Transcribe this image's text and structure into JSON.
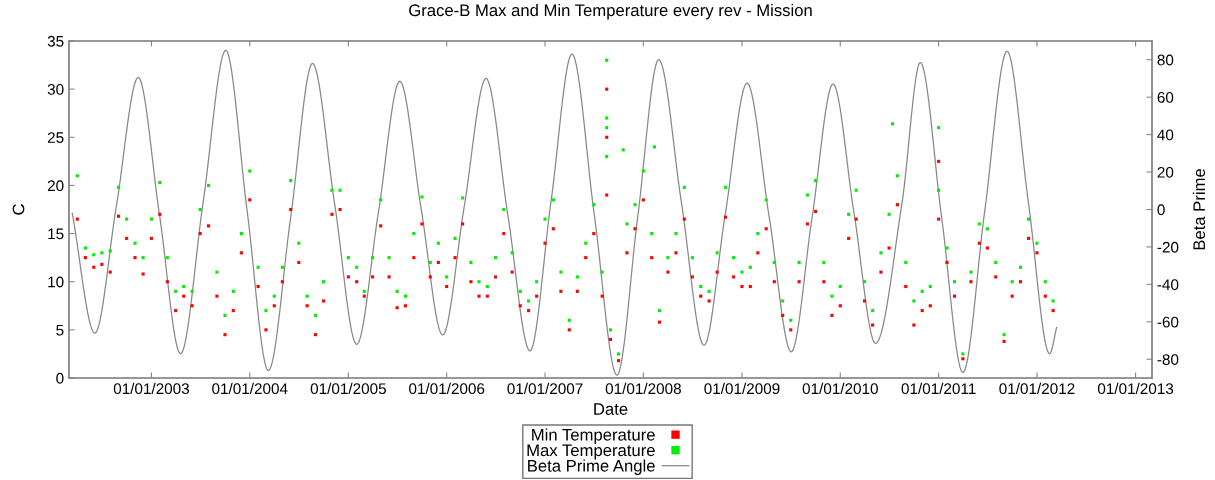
{
  "chart_data": {
    "type": "scatter",
    "title": "Grace-B Max and Min Temperature every rev - Mission",
    "xlabel": "Date",
    "ylabel": "C",
    "y2label": "Beta Prime",
    "xlim": [
      "2002-03-01",
      "2013-03-03"
    ],
    "xticks": [
      {
        "value": "2003-01-01",
        "label": "01/01/2003"
      },
      {
        "value": "2004-01-01",
        "label": "01/01/2004"
      },
      {
        "value": "2005-01-01",
        "label": "01/01/2005"
      },
      {
        "value": "2006-01-01",
        "label": "01/01/2006"
      },
      {
        "value": "2007-01-01",
        "label": "01/01/2007"
      },
      {
        "value": "2008-01-01",
        "label": "01/01/2008"
      },
      {
        "value": "2009-01-01",
        "label": "01/01/2009"
      },
      {
        "value": "2010-01-01",
        "label": "01/01/2010"
      },
      {
        "value": "2011-01-01",
        "label": "01/01/2011"
      },
      {
        "value": "2012-01-01",
        "label": "01/01/2012"
      },
      {
        "value": "2013-01-01",
        "label": "01/01/2013"
      }
    ],
    "ylim": [
      0,
      35
    ],
    "yticks": [
      0,
      5,
      10,
      15,
      20,
      25,
      30,
      35
    ],
    "y2lim": [
      -90,
      90
    ],
    "y2ticks": [
      -80,
      -60,
      -40,
      -20,
      0,
      20,
      40,
      60,
      80
    ],
    "grid": false,
    "legend": "bottom",
    "series": [
      {
        "name": "Min Temperature",
        "marker": "square",
        "color": "#ff0000",
        "x": [
          "2002-04",
          "2002-05",
          "2002-06",
          "2002-07",
          "2002-08",
          "2002-09",
          "2002-10",
          "2002-11",
          "2002-12",
          "2003-01",
          "2003-02",
          "2003-03",
          "2003-04",
          "2003-05",
          "2003-06",
          "2003-07",
          "2003-08",
          "2003-09",
          "2003-10",
          "2003-11",
          "2003-12",
          "2004-01",
          "2004-02",
          "2004-03",
          "2004-04",
          "2004-05",
          "2004-06",
          "2004-07",
          "2004-08",
          "2004-09",
          "2004-10",
          "2004-11",
          "2004-12",
          "2005-01",
          "2005-02",
          "2005-03",
          "2005-04",
          "2005-05",
          "2005-06",
          "2005-07",
          "2005-08",
          "2005-09",
          "2005-10",
          "2005-11",
          "2005-12",
          "2006-01",
          "2006-02",
          "2006-03",
          "2006-04",
          "2006-05",
          "2006-06",
          "2006-07",
          "2006-08",
          "2006-09",
          "2006-10",
          "2006-11",
          "2006-12",
          "2007-01",
          "2007-02",
          "2007-03",
          "2007-04",
          "2007-05",
          "2007-06",
          "2007-07",
          "2007-08",
          "2007-08-18",
          "2007-08-18",
          "2007-08-18",
          "2007-09",
          "2007-10",
          "2007-11",
          "2007-12",
          "2008-01",
          "2008-02",
          "2008-03",
          "2008-04",
          "2008-05",
          "2008-06",
          "2008-07",
          "2008-08",
          "2008-09",
          "2008-10",
          "2008-11",
          "2008-12",
          "2009-01",
          "2009-02",
          "2009-03",
          "2009-04",
          "2009-05",
          "2009-06",
          "2009-07",
          "2009-08",
          "2009-09",
          "2009-10",
          "2009-11",
          "2009-12",
          "2010-01",
          "2010-02",
          "2010-03",
          "2010-04",
          "2010-05",
          "2010-06",
          "2010-07",
          "2010-08",
          "2010-09",
          "2010-10",
          "2010-11",
          "2010-12",
          "2011-01",
          "2011-01-01",
          "2011-02",
          "2011-03",
          "2011-04",
          "2011-05",
          "2011-06",
          "2011-07",
          "2011-08",
          "2011-09",
          "2011-10",
          "2011-11",
          "2011-12",
          "2012-01",
          "2012-02",
          "2012-03"
        ],
        "values": [
          16.5,
          12.5,
          11.5,
          11.8,
          11,
          16.8,
          14.5,
          12.5,
          10.8,
          14.5,
          17,
          10,
          7,
          8.5,
          7.5,
          15,
          15.8,
          8.5,
          4.5,
          7,
          13,
          18.5,
          9.5,
          5,
          7.5,
          10,
          17.5,
          12,
          7.5,
          4.5,
          8,
          17,
          17.5,
          10.5,
          10,
          8.5,
          10.5,
          15.8,
          10.5,
          7.3,
          7.5,
          12.5,
          16,
          10.5,
          12,
          9.5,
          12.5,
          16,
          10,
          8.5,
          8.5,
          10.5,
          15,
          11,
          7.5,
          7,
          8.5,
          14,
          15.5,
          9,
          5,
          9,
          12.5,
          15,
          8.5,
          30,
          25,
          19,
          4,
          1.8,
          13,
          15.5,
          18.5,
          12.5,
          5.8,
          11,
          13,
          16.5,
          10.5,
          8.5,
          8,
          11,
          16.7,
          10.5,
          9.5,
          9.5,
          13,
          15.5,
          10,
          6.5,
          5,
          10,
          16,
          17.3,
          10,
          6.5,
          7.5,
          14.5,
          16.5,
          8,
          5.5,
          11,
          13.5,
          18,
          9.5,
          5.5,
          7,
          7.5,
          16.5,
          22.5,
          12,
          8.5,
          2,
          10,
          14,
          13.5,
          10.5,
          3.8,
          8.5,
          10,
          14.5,
          13,
          8.5,
          7
        ]
      },
      {
        "name": "Max Temperature",
        "marker": "square",
        "color": "#00ee00",
        "x": [
          "2002-04",
          "2002-05",
          "2002-06",
          "2002-07",
          "2002-08",
          "2002-09",
          "2002-10",
          "2002-11",
          "2002-12",
          "2003-01",
          "2003-02",
          "2003-03",
          "2003-04",
          "2003-05",
          "2003-06",
          "2003-07",
          "2003-08",
          "2003-09",
          "2003-10",
          "2003-11",
          "2003-12",
          "2004-01",
          "2004-02",
          "2004-03",
          "2004-04",
          "2004-05",
          "2004-06",
          "2004-07",
          "2004-08",
          "2004-09",
          "2004-10",
          "2004-11",
          "2004-12",
          "2005-01",
          "2005-02",
          "2005-03",
          "2005-04",
          "2005-05",
          "2005-06",
          "2005-07",
          "2005-08",
          "2005-09",
          "2005-10",
          "2005-11",
          "2005-12",
          "2006-01",
          "2006-02",
          "2006-03",
          "2006-04",
          "2006-05",
          "2006-06",
          "2006-07",
          "2006-08",
          "2006-09",
          "2006-10",
          "2006-11",
          "2006-12",
          "2007-01",
          "2007-02",
          "2007-03",
          "2007-04",
          "2007-05",
          "2007-06",
          "2007-07",
          "2007-08",
          "2007-08-18",
          "2007-08-18",
          "2007-08-18",
          "2007-08-18",
          "2007-09",
          "2007-10",
          "2007-10-18",
          "2007-11",
          "2007-12",
          "2008-01",
          "2008-02",
          "2008-02-11",
          "2008-03",
          "2008-04",
          "2008-05",
          "2008-06",
          "2008-07",
          "2008-08",
          "2008-09",
          "2008-10",
          "2008-11",
          "2008-12",
          "2009-01",
          "2009-02",
          "2009-03",
          "2009-04",
          "2009-05",
          "2009-06",
          "2009-07",
          "2009-08",
          "2009-09",
          "2009-10",
          "2009-11",
          "2009-12",
          "2010-01",
          "2010-02",
          "2010-03",
          "2010-04",
          "2010-05",
          "2010-06",
          "2010-07",
          "2010-07-14",
          "2010-08",
          "2010-09",
          "2010-10",
          "2010-11",
          "2010-12",
          "2011-01",
          "2011-01-01",
          "2011-02",
          "2011-03",
          "2011-04",
          "2011-05",
          "2011-06",
          "2011-07",
          "2011-08",
          "2011-09",
          "2011-10",
          "2011-11",
          "2011-12",
          "2012-01",
          "2012-02",
          "2012-03"
        ],
        "values": [
          21,
          13.5,
          12.8,
          13,
          13.2,
          19.8,
          16.5,
          14,
          12.5,
          16.5,
          20.3,
          12.5,
          9,
          9.5,
          9,
          17.5,
          20,
          11,
          6.5,
          9,
          15,
          21.5,
          11.5,
          7,
          8.5,
          11.5,
          20.5,
          14,
          8.5,
          6.5,
          10,
          19.5,
          19.5,
          12.5,
          11.5,
          9,
          12.5,
          18.5,
          12.5,
          9,
          8.5,
          15,
          18.8,
          12,
          14,
          10.5,
          14.5,
          18.7,
          12,
          10,
          9.5,
          12.5,
          17.5,
          13,
          9,
          8,
          10,
          16.5,
          18.5,
          11,
          6,
          10.5,
          14,
          18,
          11,
          33,
          27,
          26,
          23,
          5,
          2.5,
          23.7,
          16,
          18,
          21.5,
          15,
          24,
          7,
          12.5,
          15,
          19.8,
          12.5,
          9.5,
          9,
          13,
          19.8,
          12.5,
          11,
          11.5,
          15,
          18.5,
          12,
          8,
          6,
          12,
          19,
          20.5,
          12,
          8.5,
          9.5,
          17,
          19.5,
          10,
          7,
          13,
          17,
          26.4,
          21,
          12,
          8,
          9,
          9.5,
          19.5,
          26,
          13.5,
          10,
          2.5,
          11,
          16,
          15.5,
          12,
          4.5,
          10,
          11.5,
          16.5,
          14,
          10,
          8
        ]
      },
      {
        "name": "Beta Prime Angle",
        "type": "line",
        "axis": "y2",
        "line_style": "solid",
        "color": "#888888",
        "x": [
          "2002-03-13",
          "2002-06-05",
          "2002-08-24",
          "2002-11-13",
          "2003-01-31",
          "2003-04-19",
          "2003-07-12",
          "2003-10-04",
          "2003-12-22",
          "2004-03-10",
          "2004-06-01",
          "2004-08-21",
          "2004-11-11",
          "2005-02-01",
          "2005-04-22",
          "2005-07-11",
          "2005-09-28",
          "2005-12-17",
          "2006-03-07",
          "2006-05-27",
          "2006-08-16",
          "2006-11-06",
          "2007-01-23",
          "2007-04-11",
          "2007-07-03",
          "2007-09-25",
          "2007-12-11",
          "2008-02-27",
          "2008-05-21",
          "2008-08-13",
          "2008-10-31",
          "2009-01-20",
          "2009-04-12",
          "2009-07-03",
          "2009-09-18",
          "2009-12-05",
          "2010-02-21",
          "2010-05-12",
          "2010-08-18",
          "2010-10-25",
          "2011-01-12",
          "2011-04-01",
          "2011-06-21",
          "2011-09-12",
          "2011-11-30",
          "2012-02-17",
          "2012-03-14"
        ],
        "values": [
          -2,
          -66,
          2,
          70.5,
          -3,
          -77,
          4,
          85,
          -0.5,
          -86,
          -4,
          78,
          3,
          -72,
          -2,
          68.5,
          0.5,
          -67,
          1.5,
          70,
          -3,
          -75.5,
          4,
          83,
          -3,
          -88.5,
          -4,
          80,
          4,
          -72.5,
          -2.5,
          67.5,
          -4,
          -76,
          -4.5,
          67,
          -2,
          -71.5,
          3.5,
          78.5,
          -4,
          -87,
          -1,
          84.5,
          4,
          -77,
          -63
        ]
      }
    ]
  }
}
